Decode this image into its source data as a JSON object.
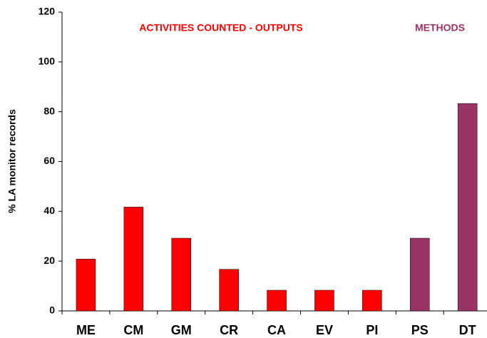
{
  "chart_data": {
    "type": "bar",
    "y_label": "% LA monitor records",
    "categories": [
      "ME",
      "CM",
      "GM",
      "CR",
      "CA",
      "EV",
      "PI",
      "PS",
      "DT"
    ],
    "values": [
      20.8,
      41.7,
      29.2,
      16.7,
      8.3,
      8.3,
      8.3,
      29.2,
      83.3
    ],
    "colors": [
      "#ff0000",
      "#ff0000",
      "#ff0000",
      "#ff0000",
      "#ff0000",
      "#ff0000",
      "#ff0000",
      "#993366",
      "#993366"
    ],
    "annotations": [
      {
        "text": "ACTIVITIES COUNTED - OUTPUTS",
        "color": "#ff0000"
      },
      {
        "text": "METHODS",
        "color": "#993366"
      }
    ],
    "ylim": [
      0,
      120
    ],
    "yticks": [
      0,
      20,
      40,
      60,
      80,
      100,
      120
    ],
    "grid": false
  }
}
